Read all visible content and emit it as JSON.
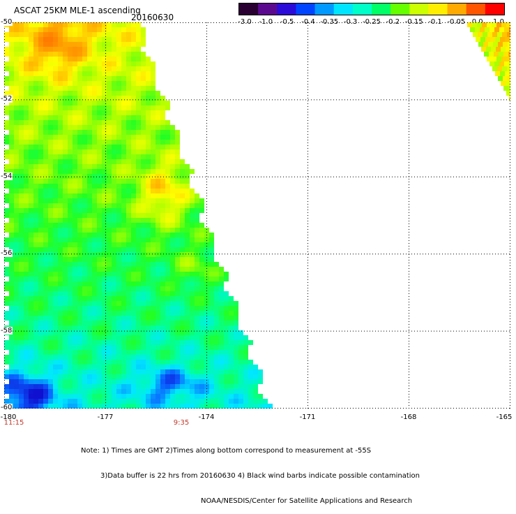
{
  "header": {
    "title": "ASCAT 25KM MLE-1 ascending",
    "date": "20160630"
  },
  "colorbar": {
    "labels": [
      "-3.0",
      "-1.0",
      "-0.5",
      "-0.4",
      "-0.35",
      "-0.3",
      "-0.25",
      "-0.2",
      "-0.15",
      "-0.1",
      "-0.05",
      "0.0",
      "1.0"
    ],
    "colors": [
      "#2a0033",
      "#5b0a8f",
      "#2b0bd8",
      "#0044ff",
      "#0099ff",
      "#00e5ff",
      "#00ffc8",
      "#00ff66",
      "#66ff00",
      "#ccff00",
      "#ffee00",
      "#ffaa00",
      "#ff5500",
      "#ff0000"
    ]
  },
  "map": {
    "lon_range": [
      -180,
      -165
    ],
    "lat_range": [
      -60,
      -50
    ],
    "x_ticks": [
      "-180",
      "-177",
      "-174",
      "-171",
      "-168",
      "-165"
    ],
    "y_ticks": [
      "-50",
      "-52",
      "-54",
      "-56",
      "-58",
      "-60"
    ],
    "time_labels": [
      "11:15",
      "9:35"
    ]
  },
  "notes": {
    "line1": "Note: 1) Times are GMT 2)Times along bottom correspond to measurement at -55S",
    "line2": "3)Data buffer is 22 hrs from 20160630 4) Black wind barbs indicate possible contamination",
    "line3": "NOAA/NESDIS/Center for Satellite Applications and Research"
  }
}
